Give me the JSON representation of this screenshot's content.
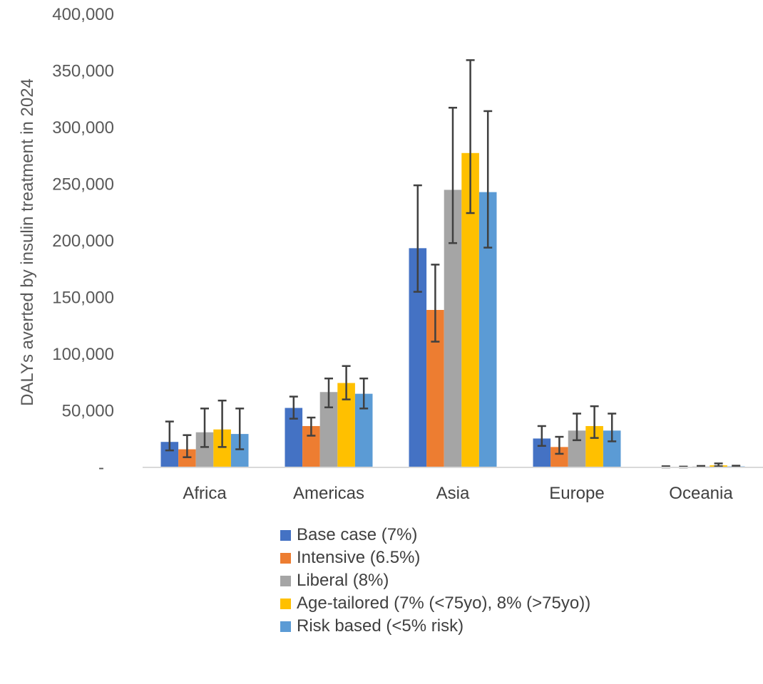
{
  "chart_data": {
    "type": "bar",
    "title": "",
    "xlabel": "",
    "ylabel": "DALYs averted by insulin treatment in 2024",
    "ylim": [
      0,
      400000
    ],
    "y_ticks": [
      "-",
      "50,000",
      "100,000",
      "150,000",
      "200,000",
      "250,000",
      "300,000",
      "350,000",
      "400,000"
    ],
    "categories": [
      "Africa",
      "Americas",
      "Asia",
      "Europe",
      "Oceania"
    ],
    "legend_position": "bottom",
    "grid": false,
    "series": [
      {
        "name": "Base case (7%)",
        "color": "#4472C4",
        "values": [
          22500,
          52500,
          193500,
          25500,
          500
        ],
        "err_low": [
          15000,
          43000,
          155000,
          19000,
          0
        ],
        "err_high": [
          40500,
          62500,
          249000,
          36500,
          1000
        ]
      },
      {
        "name": "Intensive (6.5%)",
        "color": "#ED7D31",
        "values": [
          16000,
          36500,
          139000,
          18000,
          300
        ],
        "err_low": [
          9000,
          28000,
          111000,
          12000,
          0
        ],
        "err_high": [
          28500,
          44000,
          179000,
          27000,
          700
        ]
      },
      {
        "name": "Liberal (8%)",
        "color": "#A5A5A5",
        "values": [
          31000,
          66500,
          245000,
          32500,
          800
        ],
        "err_low": [
          18000,
          53000,
          198000,
          24000,
          300
        ],
        "err_high": [
          52000,
          78500,
          317500,
          47500,
          1300
        ]
      },
      {
        "name": "Age-tailored (7% (<75yo), 8% (>75yo))",
        "color": "#FFC000",
        "values": [
          33500,
          74500,
          277500,
          36500,
          1800
        ],
        "err_low": [
          18000,
          60000,
          224500,
          26000,
          1000
        ],
        "err_high": [
          59000,
          89500,
          359500,
          54000,
          3500
        ]
      },
      {
        "name": "Risk based (<5% risk)",
        "color": "#5B9BD5",
        "values": [
          29500,
          65000,
          243000,
          32500,
          900
        ],
        "err_low": [
          16000,
          52000,
          194000,
          23000,
          300
        ],
        "err_high": [
          52000,
          78500,
          314500,
          47500,
          1500
        ]
      }
    ]
  }
}
